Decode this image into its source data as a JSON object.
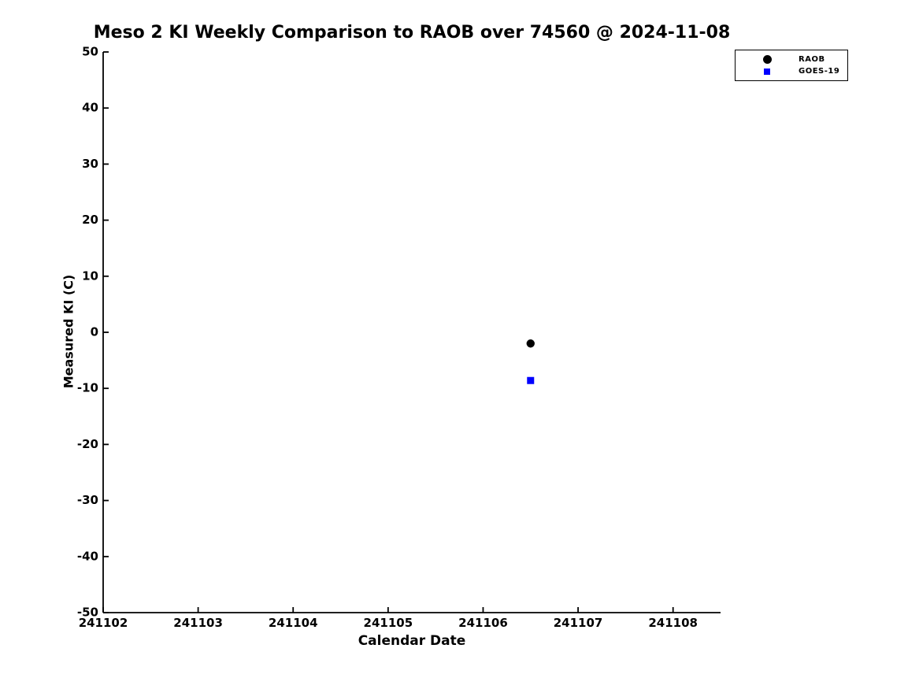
{
  "title": "Meso 2 KI Weekly Comparison to RAOB over 74560 @ 2024-11-08",
  "colors": {
    "raob": "#000000",
    "goes19": "#0000ff",
    "axis": "#000000",
    "text": "#000000",
    "background": "#ffffff"
  },
  "legend": {
    "items": [
      {
        "label": "RAOB",
        "marker": "circle",
        "color": "#000000"
      },
      {
        "label": "GOES-19",
        "marker": "square",
        "color": "#0000ff"
      }
    ]
  },
  "chart_data": {
    "type": "scatter",
    "title": "Meso 2 KI Weekly Comparison to RAOB over 74560 @ 2024-11-08",
    "xlabel": "Calendar Date",
    "ylabel": "Measured KI (C)",
    "xlim": [
      241102,
      241108.5
    ],
    "ylim": [
      -50,
      50
    ],
    "x_ticks": [
      241102,
      241103,
      241104,
      241105,
      241106,
      241107,
      241108
    ],
    "y_ticks": [
      -50,
      -40,
      -30,
      -20,
      -10,
      0,
      10,
      20,
      30,
      40,
      50
    ],
    "grid": false,
    "legend_position": "outside-top-right",
    "series": [
      {
        "name": "RAOB",
        "marker": "circle",
        "color": "#000000",
        "points": [
          {
            "x": 241106.5,
            "y": -2
          }
        ]
      },
      {
        "name": "GOES-19",
        "marker": "square",
        "color": "#0000ff",
        "points": [
          {
            "x": 241106.5,
            "y": -8.6
          }
        ]
      }
    ]
  }
}
